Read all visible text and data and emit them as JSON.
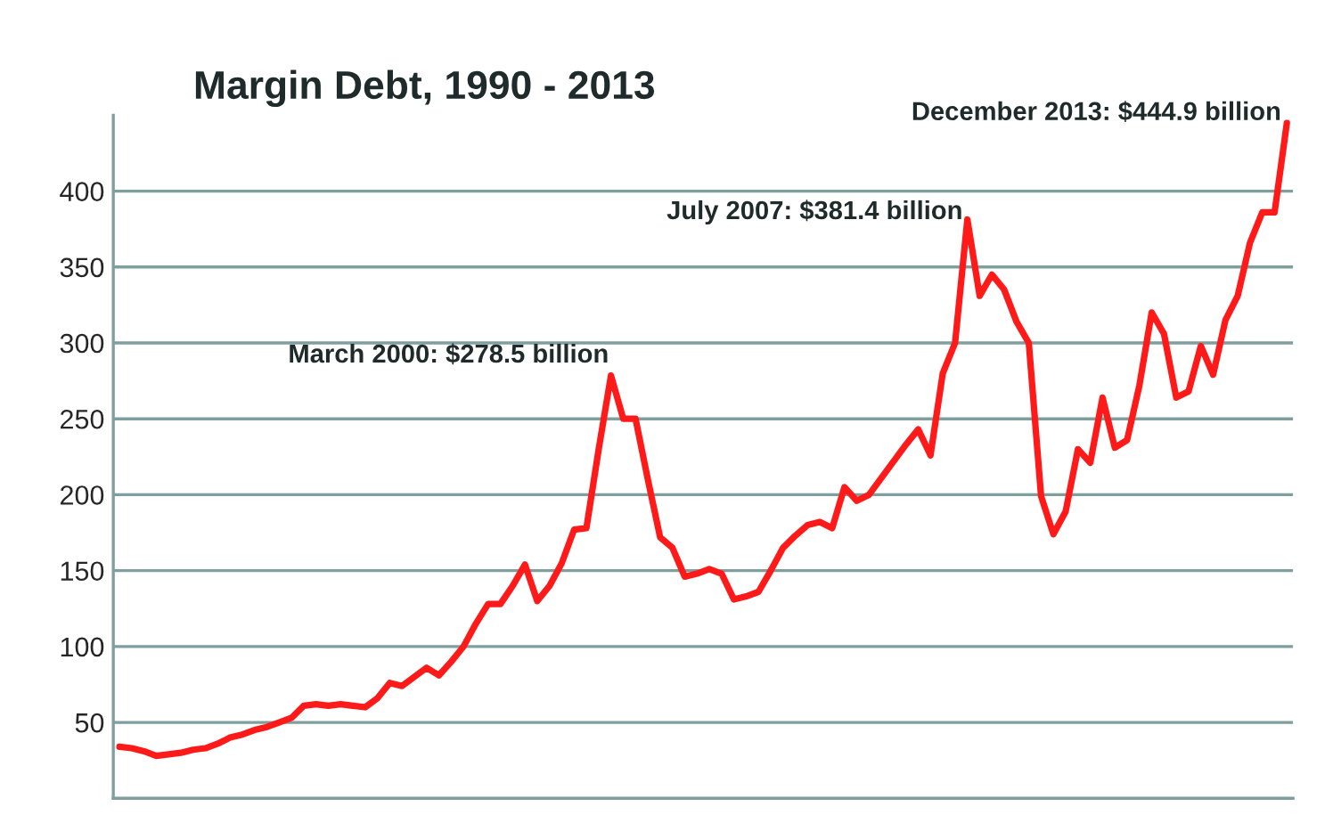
{
  "chart_data": {
    "type": "line",
    "title": "Margin Debt, 1990 - 2013",
    "categories": [
      null,
      null,
      null,
      null,
      null,
      null,
      null,
      null,
      null,
      null,
      null,
      null,
      null,
      null,
      null,
      null,
      null,
      null,
      null,
      null,
      null,
      null,
      null,
      null,
      null,
      null,
      null,
      null,
      null,
      null,
      null,
      null,
      null,
      null,
      null,
      null,
      null,
      null,
      null,
      null,
      null,
      null,
      null,
      null,
      null,
      null,
      null,
      null,
      null,
      null,
      null,
      null,
      null,
      null,
      null,
      null,
      null,
      null,
      null,
      null,
      null,
      null,
      null,
      null,
      null,
      null,
      null,
      null,
      null,
      null,
      null,
      null,
      null,
      null,
      null,
      null,
      null,
      null,
      null,
      null,
      null,
      null,
      null,
      null,
      null,
      null,
      null,
      null,
      null,
      null,
      null,
      null,
      null,
      null,
      null,
      null
    ],
    "series": [
      {
        "color": "#ff1a1a",
        "values": [
          34,
          33,
          31,
          28,
          29,
          30,
          32,
          33,
          36,
          40,
          42,
          45,
          47,
          50,
          53,
          61,
          62,
          61,
          62,
          61,
          60,
          66,
          76,
          74,
          80,
          86,
          81,
          90,
          100,
          115,
          128,
          128,
          140,
          154,
          130,
          140,
          155,
          177,
          178,
          230,
          278.5,
          250,
          250,
          210,
          172,
          165,
          146,
          148,
          151,
          148,
          131,
          133,
          136,
          150,
          165,
          173,
          180,
          182,
          178,
          205,
          196,
          200,
          211,
          222,
          233,
          243,
          226,
          280,
          300,
          381.4,
          331,
          345,
          335,
          314,
          300,
          199,
          174,
          189,
          230,
          221,
          264,
          231,
          236,
          272,
          320,
          306,
          264,
          268,
          298,
          279,
          315,
          331,
          366,
          386,
          386,
          444.9
        ]
      }
    ],
    "ylim": [
      0,
      450
    ],
    "yticks": [
      50,
      100,
      150,
      200,
      250,
      300,
      350,
      400
    ],
    "tick_labels": "y",
    "grid": "y",
    "line_style": "solid",
    "marker": "none",
    "annotations": [
      "March 2000: $278.5 billion",
      "July 2007: $381.4 billion",
      "December 2013: $444.9 billion"
    ]
  }
}
